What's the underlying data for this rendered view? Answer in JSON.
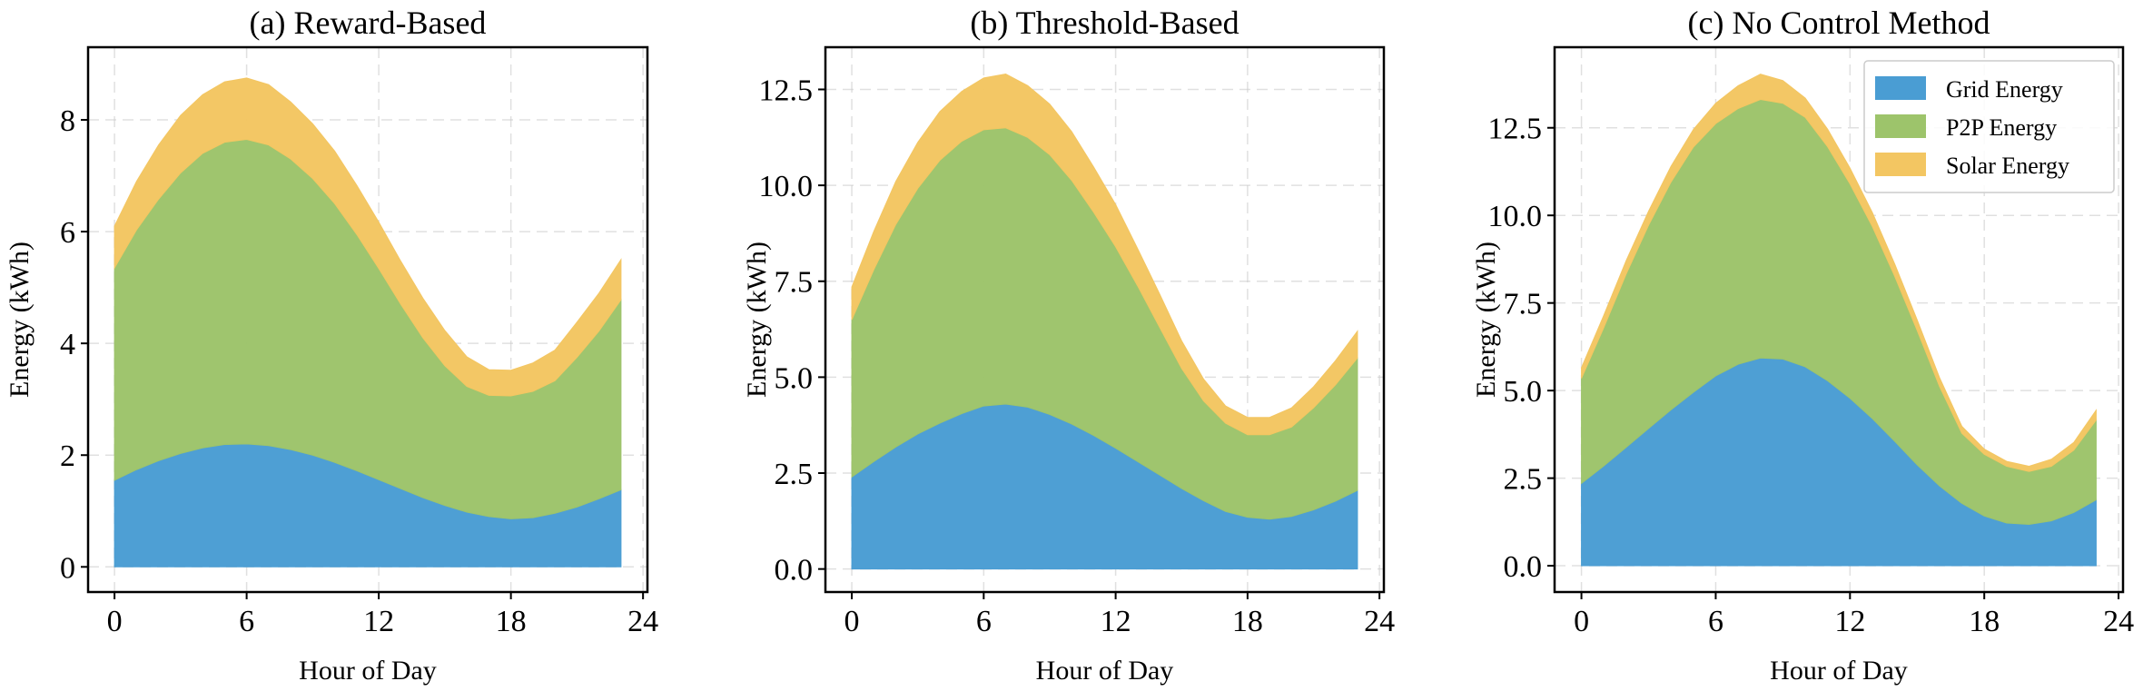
{
  "chart_data": [
    {
      "type": "area",
      "stacked": true,
      "title": "(a) Reward-Based",
      "xlabel": "Hour of Day",
      "ylabel": "Energy (kWh)",
      "xlim": [
        -1.2,
        24.2
      ],
      "ylim": [
        -0.45,
        9.3
      ],
      "xticks": [
        0,
        6,
        12,
        18,
        24
      ],
      "yticks": [
        0,
        2,
        4,
        6,
        8
      ],
      "ytick_labels": [
        "0",
        "2",
        "4",
        "6",
        "8"
      ],
      "grid": true,
      "x": [
        0,
        1,
        2,
        3,
        4,
        5,
        6,
        7,
        8,
        9,
        10,
        11,
        12,
        13,
        14,
        15,
        16,
        17,
        18,
        19,
        20,
        21,
        22,
        23
      ],
      "series": [
        {
          "name": "Grid Energy",
          "color": "#4a9dd3",
          "values": [
            1.55,
            1.74,
            1.9,
            2.03,
            2.13,
            2.19,
            2.2,
            2.17,
            2.1,
            2.0,
            1.87,
            1.72,
            1.56,
            1.4,
            1.24,
            1.1,
            0.98,
            0.9,
            0.86,
            0.88,
            0.96,
            1.07,
            1.22,
            1.38
          ]
        },
        {
          "name": "P2P Energy",
          "color": "#9dc46b",
          "values": [
            3.8,
            4.29,
            4.68,
            5.02,
            5.27,
            5.41,
            5.45,
            5.38,
            5.2,
            4.95,
            4.63,
            4.23,
            3.78,
            3.3,
            2.86,
            2.5,
            2.25,
            2.17,
            2.2,
            2.26,
            2.37,
            2.68,
            3.0,
            3.4
          ]
        },
        {
          "name": "Solar Energy",
          "color": "#f3c662",
          "values": [
            0.75,
            0.87,
            0.97,
            1.03,
            1.05,
            1.08,
            1.1,
            1.08,
            1.02,
            0.98,
            0.94,
            0.88,
            0.83,
            0.77,
            0.71,
            0.63,
            0.53,
            0.46,
            0.46,
            0.51,
            0.55,
            0.63,
            0.68,
            0.72
          ]
        }
      ]
    },
    {
      "type": "area",
      "stacked": true,
      "title": "(b) Threshold-Based",
      "xlabel": "Hour of Day",
      "ylabel": "Energy (kWh)",
      "xlim": [
        -1.2,
        24.2
      ],
      "ylim": [
        -0.6,
        13.6
      ],
      "xticks": [
        0,
        6,
        12,
        18,
        24
      ],
      "yticks": [
        0,
        2.5,
        5,
        7.5,
        10,
        12.5
      ],
      "ytick_labels": [
        "0.0",
        "2.5",
        "5.0",
        "7.5",
        "10.0",
        "12.5"
      ],
      "grid": true,
      "x": [
        0,
        1,
        2,
        3,
        4,
        5,
        6,
        7,
        8,
        9,
        10,
        11,
        12,
        13,
        14,
        15,
        16,
        17,
        18,
        19,
        20,
        21,
        22,
        23
      ],
      "series": [
        {
          "name": "Grid Energy",
          "color": "#4a9dd3",
          "values": [
            2.4,
            2.8,
            3.18,
            3.52,
            3.8,
            4.05,
            4.25,
            4.3,
            4.22,
            4.03,
            3.78,
            3.48,
            3.15,
            2.8,
            2.45,
            2.1,
            1.78,
            1.5,
            1.35,
            1.3,
            1.37,
            1.54,
            1.77,
            2.05
          ]
        },
        {
          "name": "P2P Energy",
          "color": "#9dc46b",
          "values": [
            4.1,
            5.0,
            5.8,
            6.4,
            6.85,
            7.1,
            7.2,
            7.2,
            7.03,
            6.77,
            6.35,
            5.82,
            5.25,
            4.58,
            3.85,
            3.13,
            2.6,
            2.3,
            2.15,
            2.2,
            2.33,
            2.66,
            3.03,
            3.45
          ]
        },
        {
          "name": "Solar Energy",
          "color": "#f3c662",
          "values": [
            0.85,
            1.0,
            1.12,
            1.2,
            1.27,
            1.3,
            1.35,
            1.4,
            1.35,
            1.32,
            1.27,
            1.18,
            1.1,
            0.97,
            0.87,
            0.72,
            0.57,
            0.45,
            0.45,
            0.45,
            0.5,
            0.55,
            0.63,
            0.7
          ]
        }
      ]
    },
    {
      "type": "area",
      "stacked": true,
      "title": "(c) No Control Method",
      "xlabel": "Hour of Day",
      "ylabel": "Energy (kWh)",
      "xlim": [
        -1.2,
        24.2
      ],
      "ylim": [
        -0.75,
        14.8
      ],
      "xticks": [
        0,
        6,
        12,
        18,
        24
      ],
      "yticks": [
        0,
        2.5,
        5,
        7.5,
        10,
        12.5
      ],
      "ytick_labels": [
        "0.0",
        "2.5",
        "5.0",
        "7.5",
        "10.0",
        "12.5"
      ],
      "grid": true,
      "legend": {
        "position": "top-right",
        "entries": [
          "Grid Energy",
          "P2P Energy",
          "Solar Energy"
        ]
      },
      "x": [
        0,
        1,
        2,
        3,
        4,
        5,
        6,
        7,
        8,
        9,
        10,
        11,
        12,
        13,
        14,
        15,
        16,
        17,
        18,
        19,
        20,
        21,
        22,
        23
      ],
      "series": [
        {
          "name": "Grid Energy",
          "color": "#4a9dd3",
          "values": [
            2.35,
            2.85,
            3.38,
            3.92,
            4.45,
            4.95,
            5.42,
            5.75,
            5.93,
            5.9,
            5.68,
            5.28,
            4.78,
            4.2,
            3.55,
            2.88,
            2.28,
            1.78,
            1.42,
            1.22,
            1.18,
            1.28,
            1.52,
            1.88
          ]
        },
        {
          "name": "P2P Energy",
          "color": "#9dc46b",
          "values": [
            3.0,
            3.95,
            4.95,
            5.8,
            6.5,
            7.0,
            7.2,
            7.3,
            7.38,
            7.3,
            7.12,
            6.68,
            6.12,
            5.48,
            4.71,
            3.84,
            2.84,
            2.0,
            1.76,
            1.62,
            1.51,
            1.56,
            1.78,
            2.28
          ]
        },
        {
          "name": "Solar Energy",
          "color": "#f3c662",
          "values": [
            0.3,
            0.35,
            0.38,
            0.4,
            0.45,
            0.5,
            0.58,
            0.65,
            0.72,
            0.65,
            0.55,
            0.5,
            0.45,
            0.4,
            0.35,
            0.3,
            0.25,
            0.2,
            0.15,
            0.14,
            0.15,
            0.2,
            0.22,
            0.28
          ]
        }
      ]
    }
  ]
}
